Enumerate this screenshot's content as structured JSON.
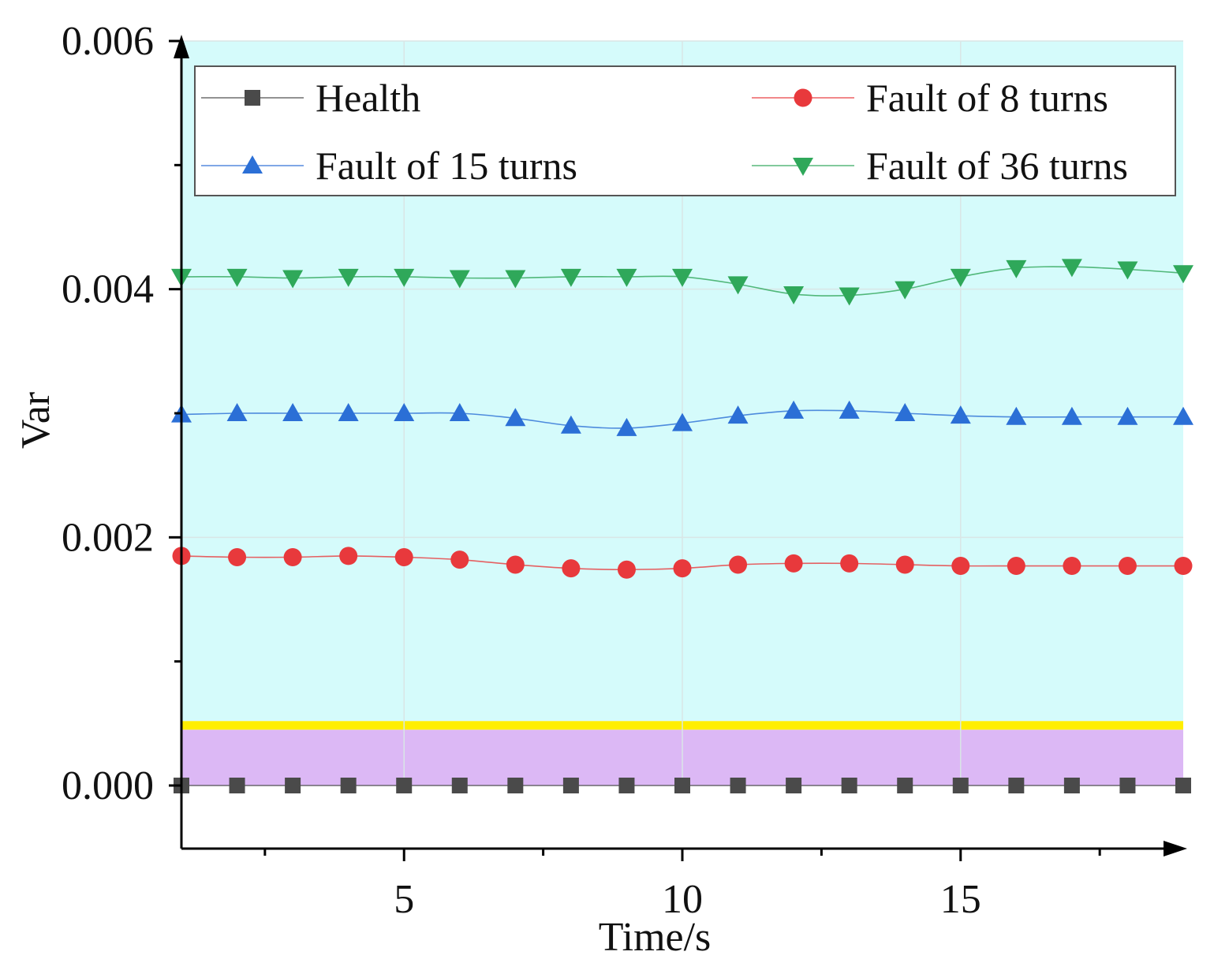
{
  "chart_data": {
    "type": "line",
    "title": "",
    "xlabel": "Time/s",
    "ylabel": "Var",
    "xlim": [
      1,
      19
    ],
    "ylim": [
      -0.0005,
      0.006
    ],
    "x_ticks": [
      5,
      10,
      15
    ],
    "x_tick_labels": [
      "5",
      "10",
      "15"
    ],
    "y_ticks": [
      0,
      0.002,
      0.004,
      0.006
    ],
    "y_tick_labels": [
      "0.000",
      "0.002",
      "0.004",
      "0.006"
    ],
    "x_minor_ticks": [
      2.5,
      7.5,
      12.5,
      17.5
    ],
    "y_minor_ticks": [
      0.001,
      0.003,
      0.005
    ],
    "grid": true,
    "legend_position": "top",
    "background_bands": [
      {
        "from": 0,
        "to": 0.00045,
        "color": "#dcb8f5"
      },
      {
        "from": 0.00045,
        "to": 0.00052,
        "color": "#ffee00"
      },
      {
        "from": 0.00052,
        "to": 0.006,
        "color": "#d5fbfb"
      }
    ],
    "x": [
      1,
      2,
      3,
      4,
      5,
      6,
      7,
      8,
      9,
      10,
      11,
      12,
      13,
      14,
      15,
      16,
      17,
      18,
      19
    ],
    "series": [
      {
        "name": "Health",
        "marker": "square",
        "color": "#4a4a4a",
        "values": [
          0,
          0,
          0,
          0,
          0,
          0,
          0,
          0,
          0,
          0,
          0,
          0,
          0,
          0,
          0,
          0,
          0,
          0,
          0
        ]
      },
      {
        "name": "Fault of 8 turns",
        "marker": "circle",
        "color": "#e8393c",
        "values": [
          0.00185,
          0.00184,
          0.00184,
          0.00185,
          0.00184,
          0.00182,
          0.00178,
          0.00175,
          0.00174,
          0.00175,
          0.00178,
          0.00179,
          0.00179,
          0.00178,
          0.00177,
          0.00177,
          0.00177,
          0.00177,
          0.00177
        ]
      },
      {
        "name": "Fault of 15 turns",
        "marker": "triangle-up",
        "color": "#2b6fd6",
        "values": [
          0.00299,
          0.003,
          0.003,
          0.003,
          0.003,
          0.003,
          0.00296,
          0.0029,
          0.00288,
          0.00292,
          0.00298,
          0.00302,
          0.00302,
          0.003,
          0.00298,
          0.00297,
          0.00297,
          0.00297,
          0.00297
        ]
      },
      {
        "name": "Fault of 36 turns",
        "marker": "triangle-down",
        "color": "#2fa85a",
        "values": [
          0.0041,
          0.0041,
          0.00409,
          0.0041,
          0.0041,
          0.00409,
          0.00409,
          0.0041,
          0.0041,
          0.0041,
          0.00404,
          0.00396,
          0.00395,
          0.004,
          0.0041,
          0.00417,
          0.00418,
          0.00416,
          0.00413
        ]
      }
    ]
  }
}
